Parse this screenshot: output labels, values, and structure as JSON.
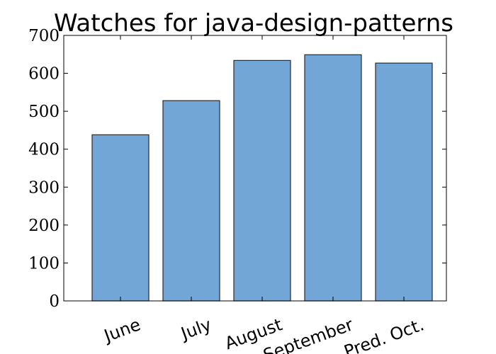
{
  "chart_data": {
    "type": "bar",
    "title": "Watches for java-design-patterns",
    "categories": [
      "June",
      "July",
      "August",
      "September",
      "Pred. Oct."
    ],
    "values": [
      438,
      528,
      634,
      649,
      627
    ],
    "ylim": [
      0,
      700
    ],
    "yticks": [
      "0",
      "100",
      "200",
      "300",
      "400",
      "500",
      "600",
      "700"
    ],
    "xlabel": "",
    "ylabel": "",
    "grid": false,
    "bar_color": "#72a6d6",
    "bar_edge_color": "#2b2b2b"
  }
}
